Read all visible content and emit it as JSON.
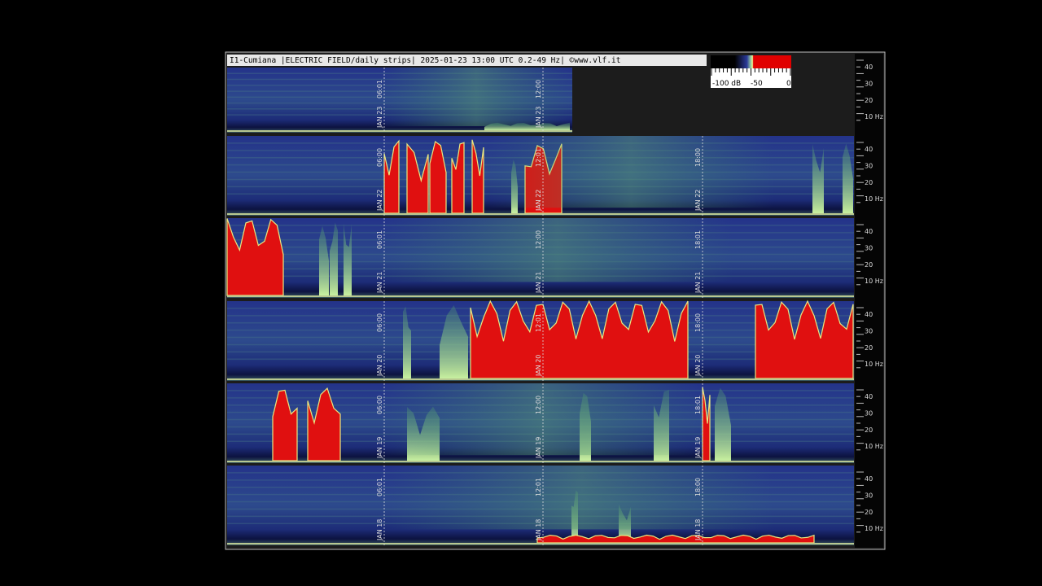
{
  "header": {
    "title": "I1-Cumiana |ELECTRIC FIELD/daily strips| 2025-01-23 13:00 UTC 0.2-49 Hz| ©www.vlf.it"
  },
  "colorbar": {
    "labels": [
      "-100 dB",
      "-50",
      "0"
    ]
  },
  "axis": {
    "labels": [
      "40",
      "30",
      "20",
      "10 Hz"
    ]
  },
  "strips": [
    {
      "markers": [
        {
          "date": "JAN 23",
          "time": "06:01"
        },
        {
          "date": "JAN 23",
          "time": "12:00"
        }
      ]
    },
    {
      "markers": [
        {
          "date": "JAN 22",
          "time": "06:00"
        },
        {
          "date": "JAN 22",
          "time": "12:01"
        },
        {
          "date": "JAN 22",
          "time": "18:00"
        }
      ]
    },
    {
      "markers": [
        {
          "date": "JAN 21",
          "time": "06:01"
        },
        {
          "date": "JAN 21",
          "time": "12:00"
        },
        {
          "date": "JAN 21",
          "time": "18:01"
        }
      ]
    },
    {
      "markers": [
        {
          "date": "JAN 20",
          "time": "06:00"
        },
        {
          "date": "JAN 20",
          "time": "12:01"
        },
        {
          "date": "JAN 20",
          "time": "18:00"
        }
      ]
    },
    {
      "markers": [
        {
          "date": "JAN 19",
          "time": "06:00"
        },
        {
          "date": "JAN 19",
          "time": "12:00"
        },
        {
          "date": "JAN 19",
          "time": "18:01"
        }
      ]
    },
    {
      "markers": [
        {
          "date": "JAN 18",
          "time": "06:01"
        },
        {
          "date": "JAN 18",
          "time": "12:01"
        },
        {
          "date": "JAN 18",
          "time": "18:00"
        }
      ]
    }
  ]
}
